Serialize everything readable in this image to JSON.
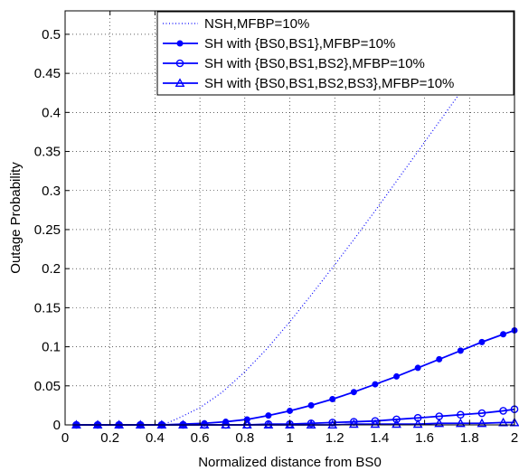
{
  "chart_data": {
    "type": "line",
    "title": "",
    "xlabel": "Normalized distance from BS0",
    "ylabel": "Outage Probability",
    "xlim": [
      0,
      2
    ],
    "ylim": [
      0,
      0.53
    ],
    "grid": true,
    "legend_position": "top-right",
    "x_ticks": [
      {
        "value": 0,
        "label": "0"
      },
      {
        "value": 0.2,
        "label": "0.2"
      },
      {
        "value": 0.4,
        "label": "0.4"
      },
      {
        "value": 0.6,
        "label": "0.6"
      },
      {
        "value": 0.8,
        "label": "0.8"
      },
      {
        "value": 1,
        "label": "1"
      },
      {
        "value": 1.2,
        "label": "1.2"
      },
      {
        "value": 1.4,
        "label": "1.4"
      },
      {
        "value": 1.6,
        "label": "1.6"
      },
      {
        "value": 1.8,
        "label": "1.8"
      },
      {
        "value": 2,
        "label": "2"
      }
    ],
    "y_ticks": [
      {
        "value": 0,
        "label": "0"
      },
      {
        "value": 0.05,
        "label": "0.05"
      },
      {
        "value": 0.1,
        "label": "0.1"
      },
      {
        "value": 0.15,
        "label": "0.15"
      },
      {
        "value": 0.2,
        "label": "0.2"
      },
      {
        "value": 0.25,
        "label": "0.25"
      },
      {
        "value": 0.3,
        "label": "0.3"
      },
      {
        "value": 0.35,
        "label": "0.35"
      },
      {
        "value": 0.4,
        "label": "0.4"
      },
      {
        "value": 0.45,
        "label": "0.45"
      },
      {
        "value": 0.5,
        "label": "0.5"
      }
    ],
    "series": [
      {
        "name": "NSH,MFBP=10%",
        "style": "dotted",
        "marker": "none",
        "color": "#0000ff",
        "x": [
          0.05,
          0.2,
          0.3,
          0.4,
          0.45,
          0.5,
          0.6,
          0.7,
          0.8,
          0.9,
          1.0,
          1.1,
          1.2,
          1.3,
          1.4,
          1.5,
          1.6,
          1.7,
          1.8,
          1.85
        ],
        "y": [
          0.0,
          0.0,
          0.0,
          0.0,
          0.002,
          0.008,
          0.022,
          0.042,
          0.068,
          0.098,
          0.132,
          0.168,
          0.205,
          0.243,
          0.282,
          0.322,
          0.362,
          0.402,
          0.442,
          0.463
        ]
      },
      {
        "name": "SH with {BS0,BS1},MFBP=10%",
        "style": "solid",
        "marker": "dot",
        "color": "#0000ff",
        "x": [
          0.05,
          0.145,
          0.24,
          0.335,
          0.43,
          0.525,
          0.62,
          0.715,
          0.81,
          0.905,
          1.0,
          1.095,
          1.19,
          1.285,
          1.38,
          1.475,
          1.57,
          1.665,
          1.76,
          1.855,
          1.95,
          2.0
        ],
        "y": [
          0.0,
          0.0,
          0.0,
          0.0,
          0.0,
          0.001,
          0.002,
          0.004,
          0.007,
          0.012,
          0.018,
          0.025,
          0.033,
          0.042,
          0.052,
          0.062,
          0.073,
          0.084,
          0.095,
          0.106,
          0.116,
          0.121
        ]
      },
      {
        "name": "SH with {BS0,BS1,BS2},MFBP=10%",
        "style": "solid",
        "marker": "circle",
        "color": "#0000ff",
        "x": [
          0.05,
          0.145,
          0.24,
          0.335,
          0.43,
          0.525,
          0.62,
          0.715,
          0.81,
          0.905,
          1.0,
          1.095,
          1.19,
          1.285,
          1.38,
          1.475,
          1.57,
          1.665,
          1.76,
          1.855,
          1.95,
          2.0
        ],
        "y": [
          0.0,
          0.0,
          0.0,
          0.0,
          0.0,
          0.0,
          0.0,
          0.0,
          0.0,
          0.001,
          0.001,
          0.002,
          0.003,
          0.004,
          0.005,
          0.007,
          0.009,
          0.011,
          0.013,
          0.015,
          0.018,
          0.02
        ]
      },
      {
        "name": "SH with {BS0,BS1,BS2,BS3},MFBP=10%",
        "style": "solid",
        "marker": "triangle",
        "color": "#0000ff",
        "x": [
          0.05,
          0.145,
          0.24,
          0.335,
          0.43,
          0.525,
          0.62,
          0.715,
          0.81,
          0.905,
          1.0,
          1.095,
          1.19,
          1.285,
          1.38,
          1.475,
          1.57,
          1.665,
          1.76,
          1.855,
          1.95,
          2.0
        ],
        "y": [
          0.0,
          0.0,
          0.0,
          0.0,
          0.0,
          0.0,
          0.0,
          0.0,
          0.0,
          0.0,
          0.0,
          0.0,
          0.0,
          0.001,
          0.001,
          0.001,
          0.001,
          0.002,
          0.002,
          0.002,
          0.003,
          0.003
        ]
      }
    ]
  }
}
